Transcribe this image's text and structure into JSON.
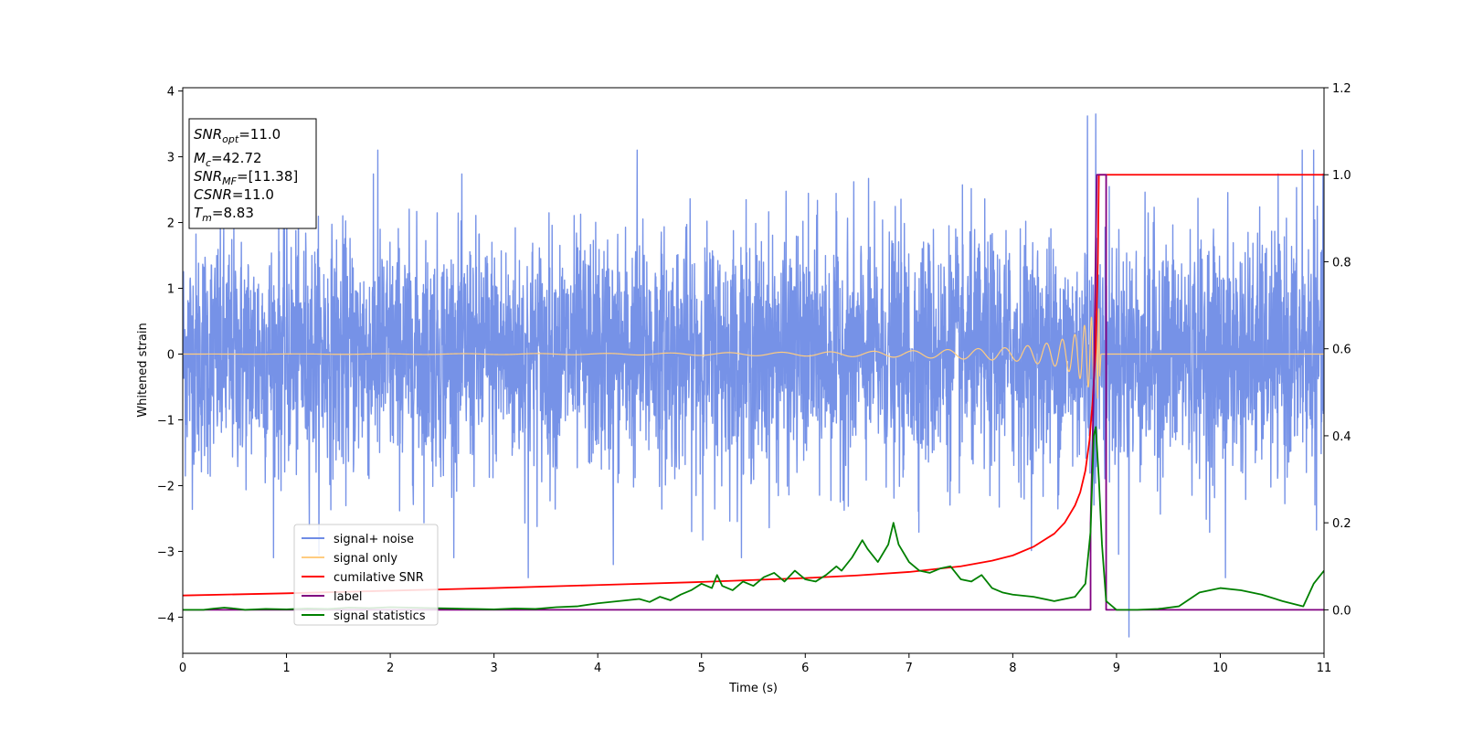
{
  "chart_data": {
    "type": "line",
    "xlabel": "Time (s)",
    "ylabel": "Whitened strain",
    "xlim": [
      0,
      11
    ],
    "ylim_left": [
      -4.55,
      4.05
    ],
    "ylim_right": [
      -0.1,
      1.2
    ],
    "xticks": [
      "0",
      "1",
      "2",
      "3",
      "4",
      "5",
      "6",
      "7",
      "8",
      "9",
      "10",
      "11"
    ],
    "yticks_left": [
      "4",
      "3",
      "2",
      "1",
      "0",
      "−1",
      "−2",
      "−3",
      "−4"
    ],
    "yticks_right": [
      "1.2",
      "1.0",
      "0.8",
      "0.6",
      "0.4",
      "0.2",
      "0.0"
    ],
    "info_box": {
      "snr_opt_main": "SNR",
      "snr_opt_sub": "opt",
      "snr_opt_val": "=11.0",
      "mc_main": "M",
      "mc_sub": "c",
      "mc_val": "=42.72",
      "snr_mf_main": "SNR",
      "snr_mf_sub": "MF",
      "snr_mf_val": "=[11.38]",
      "csnr_main": "CSNR",
      "csnr_val": "=11.0",
      "tm_main": "T",
      "tm_sub": "m",
      "tm_val": "=8.83"
    },
    "series": [
      {
        "name": "signal+ noise",
        "color": "#6f8ce6",
        "axis": "left",
        "kind": "noise",
        "std": 0.9,
        "range": [
          -4.3,
          3.65
        ],
        "spike_peaks": [
          [
            1.88,
            3.1
          ],
          [
            4.38,
            3.1
          ],
          [
            8.72,
            3.62
          ],
          [
            8.8,
            3.65
          ],
          [
            10.79,
            3.1
          ],
          [
            10.9,
            3.1
          ]
        ],
        "spike_troughs": [
          [
            3.33,
            -3.4
          ],
          [
            4.15,
            -3.2
          ],
          [
            9.12,
            -4.3
          ],
          [
            10.05,
            -3.4
          ]
        ]
      },
      {
        "name": "signal only",
        "color": "#ffcc80",
        "axis": "left",
        "kind": "chirp",
        "x": [
          0,
          4,
          6,
          7,
          8,
          8.4,
          8.6,
          8.7,
          8.78,
          8.83,
          8.85,
          11
        ],
        "amplitude": [
          0.0,
          0.01,
          0.03,
          0.05,
          0.1,
          0.18,
          0.3,
          0.45,
          0.6,
          0.7,
          0.0,
          0.0
        ]
      },
      {
        "name": "cumilative SNR",
        "color": "#ff0000",
        "axis": "right",
        "x": [
          0,
          1,
          2,
          3,
          4,
          5,
          6,
          6.5,
          7,
          7.5,
          7.8,
          8.0,
          8.2,
          8.4,
          8.5,
          8.6,
          8.65,
          8.7,
          8.74,
          8.77,
          8.8,
          8.82,
          8.83,
          9,
          10,
          11
        ],
        "values": [
          0.033,
          0.038,
          0.044,
          0.05,
          0.057,
          0.064,
          0.073,
          0.079,
          0.087,
          0.1,
          0.113,
          0.125,
          0.145,
          0.175,
          0.2,
          0.24,
          0.27,
          0.32,
          0.39,
          0.48,
          0.6,
          0.8,
          1.0,
          1.0,
          1.0,
          1.0
        ]
      },
      {
        "name": "label",
        "color": "#800080",
        "axis": "right",
        "x": [
          0,
          8.75,
          8.75,
          8.78,
          8.78,
          8.81,
          8.81,
          8.9,
          8.9,
          11
        ],
        "values": [
          0.0,
          0.0,
          0.2,
          0.5,
          0.5,
          1.0,
          1.0,
          1.0,
          0.0,
          0.0
        ]
      },
      {
        "name": "signal statistics",
        "color": "#008000",
        "axis": "right",
        "x": [
          0,
          0.2,
          0.3,
          0.4,
          0.5,
          0.6,
          0.8,
          1.0,
          1.2,
          1.4,
          1.6,
          1.8,
          2.0,
          2.2,
          2.4,
          2.6,
          2.8,
          3.0,
          3.2,
          3.4,
          3.6,
          3.8,
          4.0,
          4.2,
          4.4,
          4.5,
          4.6,
          4.7,
          4.8,
          4.9,
          5.0,
          5.1,
          5.15,
          5.2,
          5.3,
          5.4,
          5.5,
          5.6,
          5.7,
          5.8,
          5.9,
          6.0,
          6.1,
          6.2,
          6.3,
          6.35,
          6.45,
          6.55,
          6.6,
          6.7,
          6.8,
          6.85,
          6.9,
          7.0,
          7.1,
          7.2,
          7.3,
          7.4,
          7.5,
          7.6,
          7.7,
          7.8,
          7.9,
          8.0,
          8.2,
          8.4,
          8.6,
          8.7,
          8.75,
          8.78,
          8.8,
          8.83,
          8.86,
          8.9,
          9.0,
          9.2,
          9.4,
          9.6,
          9.8,
          10.0,
          10.2,
          10.4,
          10.6,
          10.8,
          10.9,
          11.0
        ],
        "values": [
          0.0,
          0.0,
          0.003,
          0.005,
          0.003,
          0.0,
          0.002,
          0.001,
          0.003,
          0.002,
          0.005,
          0.004,
          0.006,
          0.005,
          0.004,
          0.003,
          0.002,
          0.001,
          0.003,
          0.002,
          0.006,
          0.008,
          0.015,
          0.02,
          0.025,
          0.018,
          0.03,
          0.022,
          0.035,
          0.045,
          0.06,
          0.05,
          0.08,
          0.055,
          0.045,
          0.065,
          0.055,
          0.075,
          0.085,
          0.065,
          0.09,
          0.07,
          0.065,
          0.08,
          0.1,
          0.09,
          0.12,
          0.16,
          0.14,
          0.11,
          0.15,
          0.2,
          0.15,
          0.11,
          0.09,
          0.085,
          0.095,
          0.1,
          0.07,
          0.065,
          0.08,
          0.05,
          0.04,
          0.035,
          0.03,
          0.02,
          0.03,
          0.06,
          0.18,
          0.4,
          0.42,
          0.3,
          0.15,
          0.02,
          0.0,
          0.0,
          0.002,
          0.008,
          0.04,
          0.05,
          0.045,
          0.035,
          0.02,
          0.008,
          0.06,
          0.09
        ]
      }
    ]
  }
}
